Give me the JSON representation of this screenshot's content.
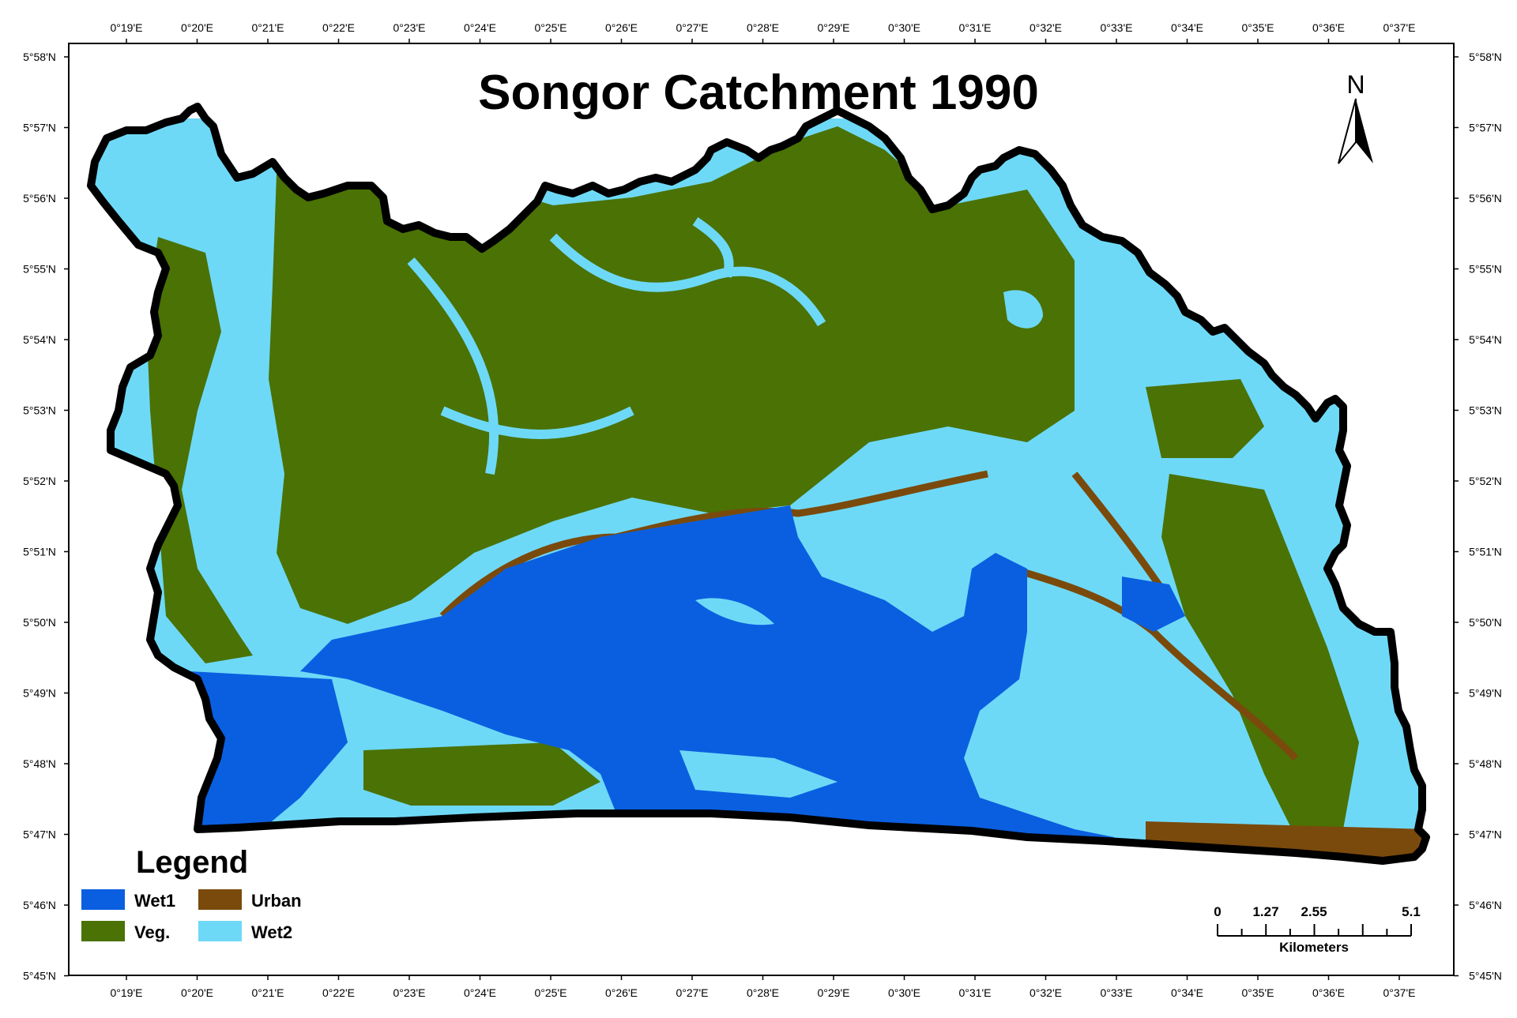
{
  "map": {
    "title": "Songor Catchment 1990",
    "longitude_labels": [
      "0°19'E",
      "0°20'E",
      "0°21'E",
      "0°22'E",
      "0°23'E",
      "0°24'E",
      "0°25'E",
      "0°26'E",
      "0°27'E",
      "0°28'E",
      "0°29'E",
      "0°30'E",
      "0°31'E",
      "0°32'E",
      "0°33'E",
      "0°34'E",
      "0°35'E",
      "0°36'E",
      "0°37'E"
    ],
    "latitude_labels": [
      "5°58'N",
      "5°57'N",
      "5°56'N",
      "5°55'N",
      "5°54'N",
      "5°53'N",
      "5°52'N",
      "5°51'N",
      "5°50'N",
      "5°49'N",
      "5°48'N",
      "5°47'N",
      "5°46'N",
      "5°45'N"
    ],
    "north_arrow": {
      "label": "N",
      "icon": "north-arrow-icon"
    },
    "legend": {
      "title": "Legend",
      "items": [
        {
          "label": "Wet1",
          "color": "#0a5fe0"
        },
        {
          "label": "Urban",
          "color": "#7a4a0c"
        },
        {
          "label": "Veg.",
          "color": "#4a7205"
        },
        {
          "label": "Wet2",
          "color": "#6ed9f7"
        }
      ]
    },
    "scale_bar": {
      "labels": [
        "0",
        "1.27",
        "2.55",
        "5.1"
      ],
      "unit": "Kilometers"
    },
    "colors": {
      "wet1": "#0a5fe0",
      "urban": "#7a4a0c",
      "veg": "#4a7205",
      "wet2": "#6ed9f7",
      "boundary": "#000000"
    }
  }
}
